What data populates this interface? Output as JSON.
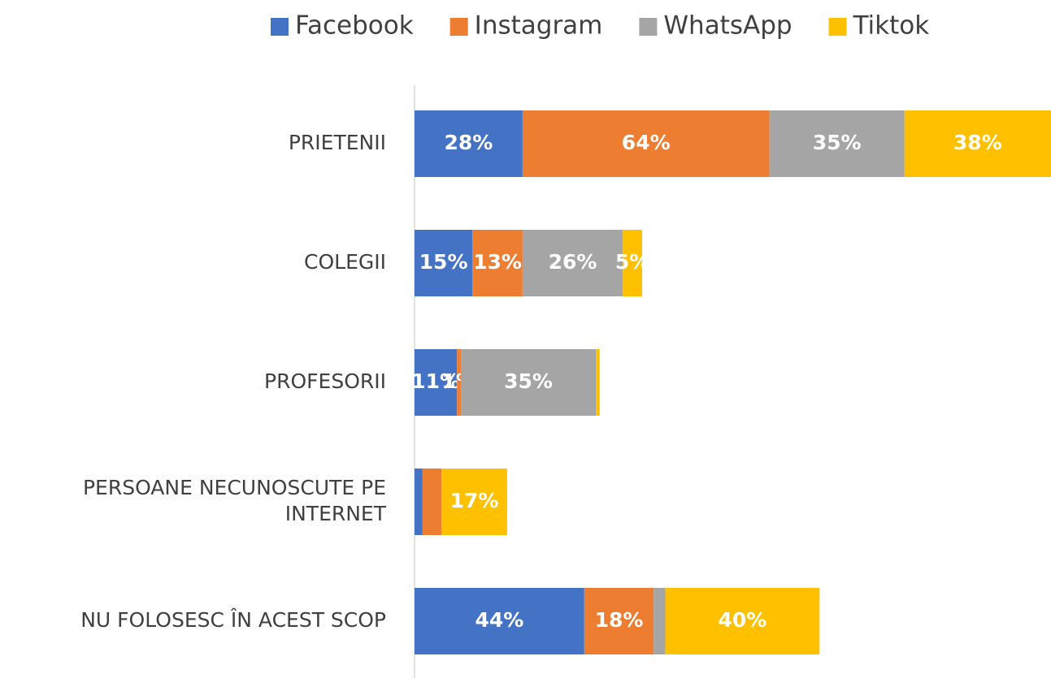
{
  "chart_data": {
    "type": "stacked-bar-horizontal",
    "categories": [
      "PRIETENII",
      "COLEGII",
      "PROFESORII",
      "PERSOANE NECUNOSCUTE PE INTERNET",
      "NU FOLOSESC ÎN ACEST SCOP"
    ],
    "series": [
      {
        "name": "Facebook",
        "color": "#4472c4",
        "values": [
          28,
          15,
          11,
          2,
          44
        ],
        "value_labels": [
          "28%",
          "15%",
          "11%",
          null,
          "44%"
        ]
      },
      {
        "name": "Instagram",
        "color": "#ed7d31",
        "values": [
          64,
          13,
          1,
          5,
          18
        ],
        "value_labels": [
          "64%",
          "13%",
          "1%",
          null,
          "18%"
        ]
      },
      {
        "name": "WhatsApp",
        "color": "#a5a5a5",
        "values": [
          35,
          26,
          35,
          0,
          3
        ],
        "value_labels": [
          "35%",
          "26%",
          "35%",
          null,
          null
        ]
      },
      {
        "name": "Tiktok",
        "color": "#ffc000",
        "values": [
          38,
          5,
          1,
          17,
          40
        ],
        "value_labels": [
          "38%",
          "5%",
          null,
          "17%",
          "40%"
        ]
      }
    ],
    "xlim": [
      0,
      165
    ],
    "legend": "top"
  }
}
